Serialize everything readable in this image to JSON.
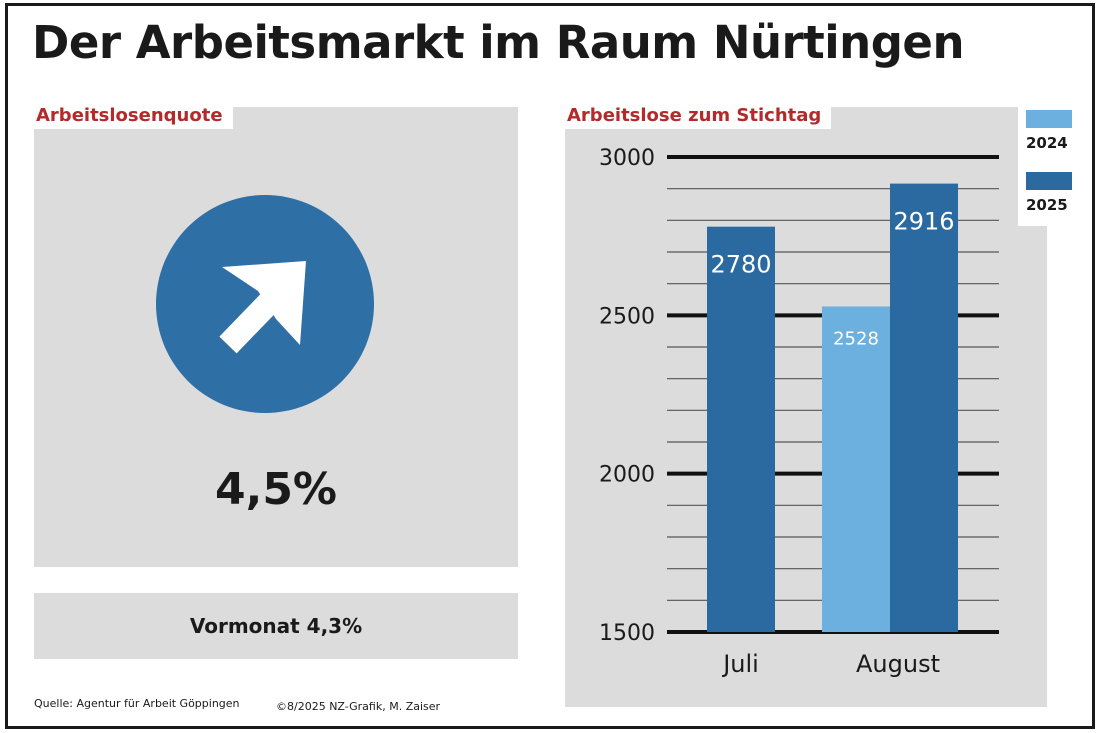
{
  "title": "Der Arbeitsmarkt im Raum Nürtingen",
  "left_panel": {
    "label": "Arbeitslosenquote",
    "rate": "4,5%",
    "trend_icon": "arrow-up-right-icon",
    "previous": "Vormonat 4,3%"
  },
  "right_panel": {
    "label": "Arbeitslose zum Stichtag"
  },
  "footer": {
    "source": "Quelle: Agentur für Arbeit Göppingen",
    "credit": "©8/2025 NZ-Grafik, M. Zaiser"
  },
  "colors": {
    "series_2024": "#6cb0e0",
    "series_2025": "#2a6aa0",
    "label_red": "#b22a2a",
    "panel_grey": "#dcdcdc"
  },
  "chart_data": {
    "type": "bar",
    "title": "Arbeitslose zum Stichtag",
    "categories": [
      "Juli",
      "August"
    ],
    "series": [
      {
        "name": "2024",
        "values": [
          null,
          2528
        ],
        "labels": [
          "",
          "2528"
        ]
      },
      {
        "name": "2025",
        "values": [
          2780,
          2916
        ],
        "labels": [
          "2780",
          "2916"
        ]
      }
    ],
    "ylim": [
      1500,
      3000
    ],
    "yticks": [
      1500,
      2000,
      2500,
      3000
    ],
    "ytick_labels": [
      "1500",
      "2000",
      "2500",
      "3000"
    ],
    "minor_step": 100,
    "legend_position": "top-right",
    "grid": true
  }
}
